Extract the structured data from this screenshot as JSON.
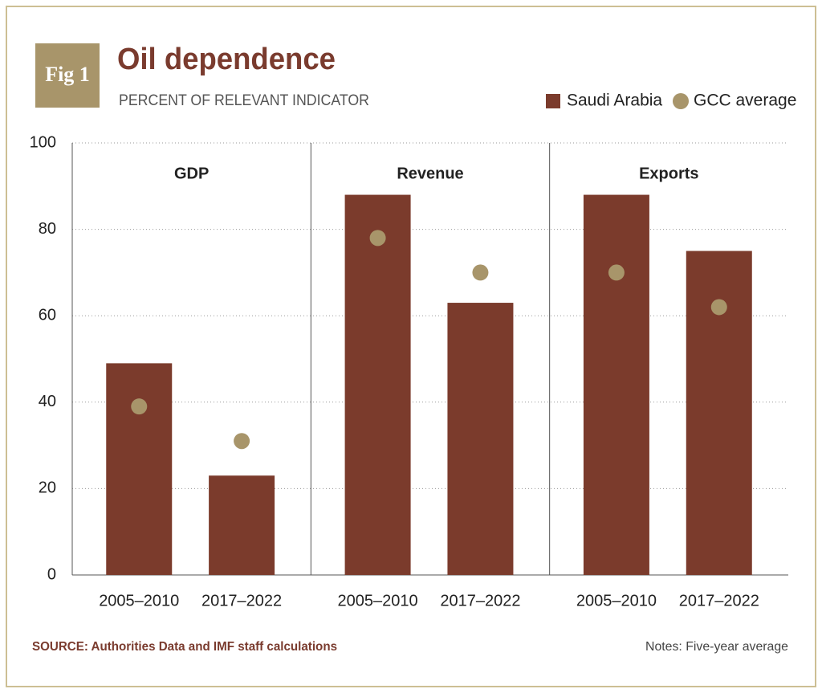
{
  "chart_data": {
    "type": "bar",
    "figure_label": "Fig 1",
    "title": "Oil dependence",
    "subtitle": "PERCENT OF RELEVANT INDICATOR",
    "groups": [
      "GDP",
      "Revenue",
      "Exports"
    ],
    "categories": [
      "2005–2010",
      "2017–2022",
      "2005–2010",
      "2017–2022",
      "2005–2010",
      "2017–2022"
    ],
    "series": [
      {
        "name": "Saudi Arabia",
        "type": "bar",
        "color": "#7b3b2c",
        "values": [
          49,
          23,
          88,
          63,
          88,
          75
        ]
      },
      {
        "name": "GCC average",
        "type": "scatter",
        "color": "#a8956a",
        "values": [
          39,
          31,
          78,
          70,
          70,
          62
        ]
      }
    ],
    "ylim": [
      0,
      100
    ],
    "yticks": [
      0,
      20,
      40,
      60,
      80,
      100
    ],
    "grid": true,
    "legend": "top-right",
    "source": "SOURCE: Authorities Data and IMF staff calculations",
    "notes": "Notes: Five-year average"
  }
}
